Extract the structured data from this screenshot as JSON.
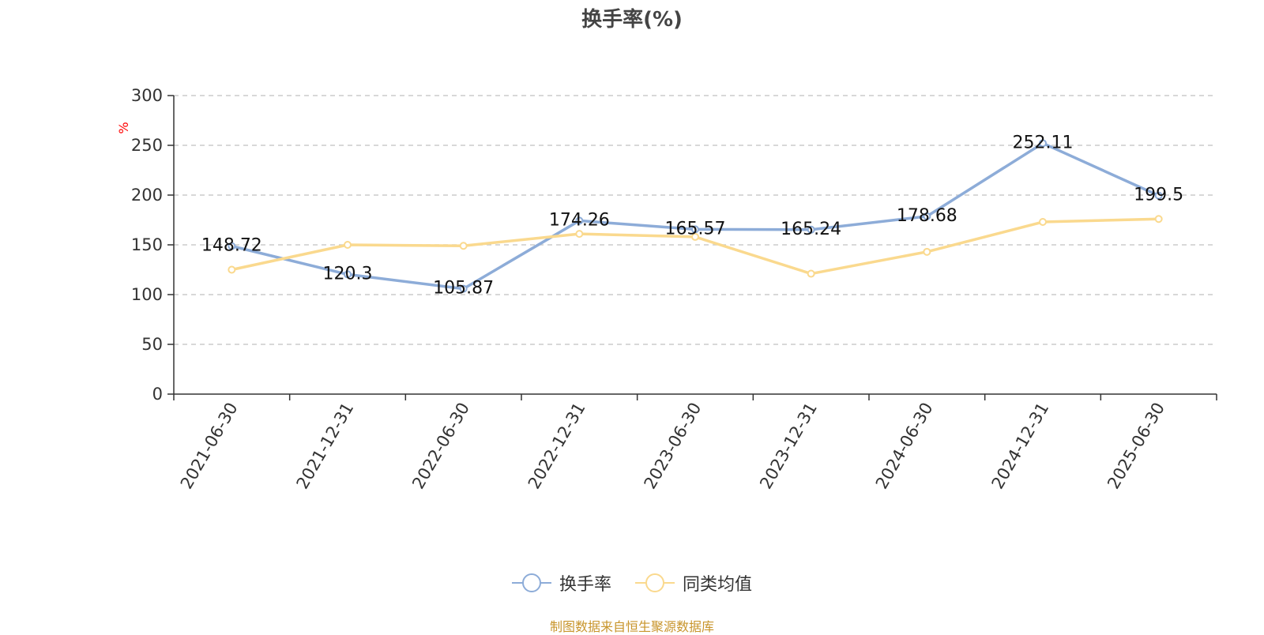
{
  "chart_data": {
    "type": "line",
    "title": "换手率(%)",
    "ylabel": "%",
    "ylim": [
      0,
      300
    ],
    "yticks": [
      0,
      50,
      100,
      150,
      200,
      250,
      300
    ],
    "grid": true,
    "legend_position": "bottom",
    "categories": [
      "2021-06-30",
      "2021-12-31",
      "2022-06-30",
      "2022-12-31",
      "2023-06-30",
      "2023-12-31",
      "2024-06-30",
      "2024-12-31",
      "2025-06-30"
    ],
    "series": [
      {
        "name": "换手率",
        "color": "#8dacd8",
        "values": [
          148.72,
          120.3,
          105.87,
          174.26,
          165.57,
          165.24,
          178.68,
          252.11,
          199.5
        ],
        "labels": [
          "148.72",
          "120.3",
          "105.87",
          "174.26",
          "165.57",
          "165.24",
          "178.68",
          "252.11",
          "199.5"
        ]
      },
      {
        "name": "同类均值",
        "color": "#fad98e",
        "values": [
          125,
          150,
          149,
          161,
          158,
          121,
          143,
          173,
          176
        ]
      }
    ]
  },
  "footer": {
    "text": "制图数据来自恒生聚源数据库",
    "color": "#c8952c"
  },
  "colors": {
    "axis": "#333333",
    "grid": "#cccccc",
    "ylabel": "#ff0000"
  }
}
